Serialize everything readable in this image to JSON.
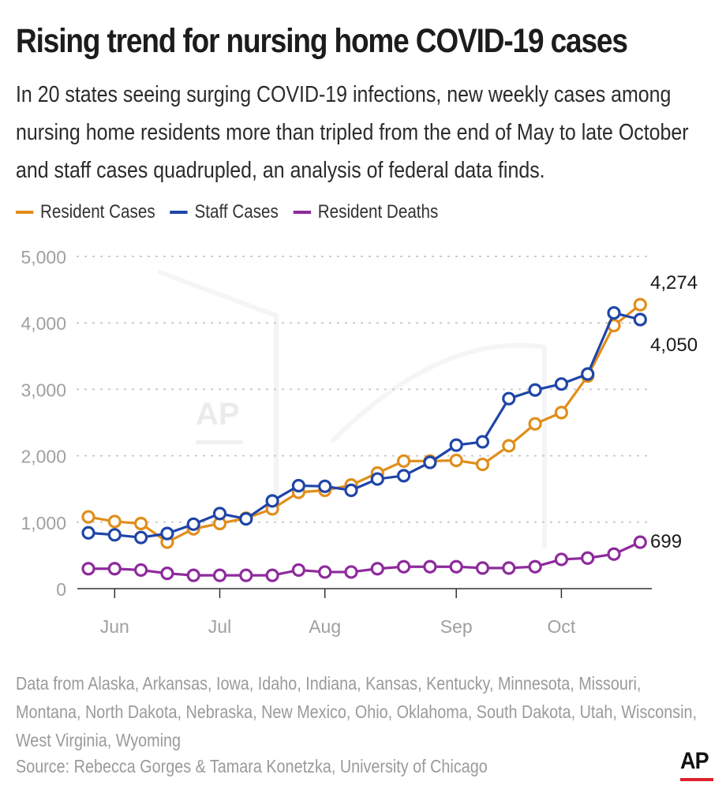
{
  "title": "Rising trend for nursing home COVID-19 cases",
  "subtitle": "In 20 states seeing surging COVID-19 infections, new weekly cases among nursing home residents more than tripled from the end of May to late October and staff cases quadrupled, an analysis of federal data finds.",
  "note": "Data from Alaska, Arkansas, Iowa, Idaho, Indiana, Kansas, Kentucky, Minnesota, Missouri, Montana, North Dakota, Nebraska, New Mexico, Ohio, Oklahoma, South Dakota, Utah, Wisconsin, West Virginia, Wyoming",
  "source": "Source: Rebecca Gorges & Tamara Konetzka, University of Chicago",
  "logo": "AP",
  "watermark": "AP",
  "colors": {
    "resident_cases": "#e08e1b",
    "staff_cases": "#1f45a8",
    "resident_deaths": "#8e2a9c",
    "accent": "#e0202b"
  },
  "chart_data": {
    "type": "line",
    "title": "Rising trend for nursing home COVID-19 cases",
    "xlabel": "",
    "ylabel": "",
    "ylim": [
      0,
      5000
    ],
    "yticks": [
      0,
      1000,
      2000,
      3000,
      4000,
      5000
    ],
    "ytick_labels": [
      "0",
      "1,000",
      "2,000",
      "3,000",
      "4,000",
      "5,000"
    ],
    "x_ticks": [
      {
        "label": "Jun",
        "week": 1
      },
      {
        "label": "Jul",
        "week": 5
      },
      {
        "label": "Aug",
        "week": 9
      },
      {
        "label": "Sep",
        "week": 14
      },
      {
        "label": "Oct",
        "week": 18
      }
    ],
    "grid": true,
    "legend": "top-left",
    "series": [
      {
        "name": "Resident Cases",
        "color": "#e08e1b",
        "values": [
          1080,
          1010,
          980,
          700,
          900,
          980,
          1060,
          1200,
          1450,
          1480,
          1560,
          1740,
          1920,
          1920,
          1930,
          1870,
          2150,
          2480,
          2650,
          3200,
          3960,
          4274
        ],
        "end_label": "4,274"
      },
      {
        "name": "Staff Cases",
        "color": "#1f45a8",
        "values": [
          840,
          810,
          770,
          830,
          970,
          1130,
          1050,
          1320,
          1550,
          1540,
          1480,
          1650,
          1700,
          1900,
          2160,
          2210,
          2860,
          2990,
          3080,
          3230,
          4150,
          4050
        ],
        "end_label": "4,050"
      },
      {
        "name": "Resident Deaths",
        "color": "#8e2a9c",
        "values": [
          300,
          300,
          280,
          230,
          200,
          200,
          200,
          200,
          280,
          250,
          250,
          300,
          330,
          330,
          330,
          310,
          310,
          330,
          440,
          460,
          520,
          699
        ],
        "end_label": "699"
      }
    ]
  }
}
